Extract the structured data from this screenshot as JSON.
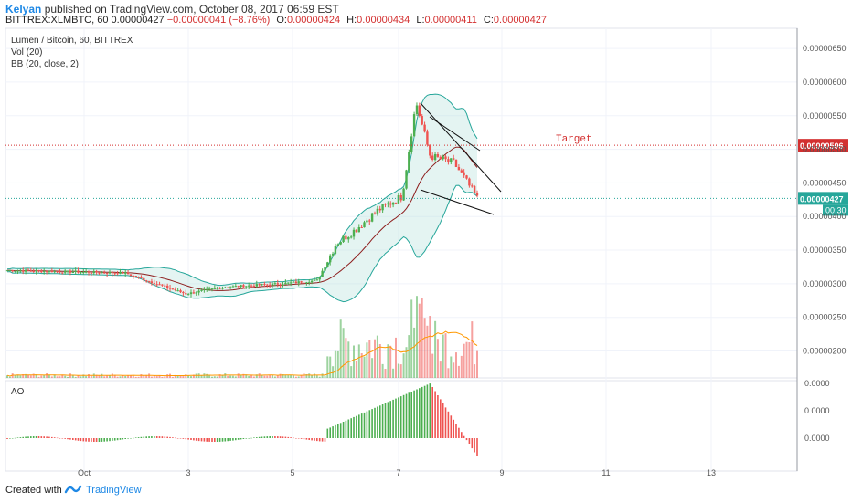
{
  "header": {
    "author": "Kelyan",
    "published": "published on TradingView.com, October 08, 2017 06:59 EST",
    "symbol_line": "BITTREX:XLMBTC, 60",
    "last": "0.00000427",
    "change": "−0.00000041 (−8.76%)",
    "o_label": "O:",
    "o_value": "0.00000424",
    "h_label": "H:",
    "h_value": "0.00000434",
    "l_label": "L:",
    "l_value": "0.00000411",
    "c_label": "C:",
    "c_value": "0.00000427"
  },
  "legend": {
    "title": "Lumen / Bitcoin, 60, BITTREX",
    "vol": "Vol (20)",
    "bb": "BB (20, close, 2)",
    "ao": "AO"
  },
  "footer": {
    "created_with": "Created with",
    "brand": "TradingView"
  },
  "colors": {
    "up": "#4caf50",
    "down": "#ef5350",
    "bb_band": "#26a69a",
    "bb_fill": "#b2dfdb",
    "bb_mid": "#8d1c1c",
    "target_line": "#d32f2f",
    "last_line": "#26a69a",
    "vol_ma": "#ff9800",
    "brand": "#1e88e5"
  },
  "chart_data": {
    "type": "candlestick",
    "price_axis": {
      "ticks": [
        "0.00000650",
        "0.00000600",
        "0.00000550",
        "0.00000500",
        "0.00000450",
        "0.00000400",
        "0.00000350",
        "0.00000300",
        "0.00000250",
        "0.00000200"
      ],
      "range": [
        1.6e-06,
        6.8e-06
      ]
    },
    "time_axis": {
      "ticks": [
        "Oct",
        "3",
        "5",
        "7",
        "9",
        "11",
        "13"
      ]
    },
    "price_path_keypoints": [
      {
        "t": 0,
        "p": 3.2
      },
      {
        "t": 0.12,
        "p": 3.18
      },
      {
        "t": 0.25,
        "p": 3.16
      },
      {
        "t": 0.38,
        "p": 2.85
      },
      {
        "t": 0.46,
        "p": 2.95
      },
      {
        "t": 0.58,
        "p": 3.0
      },
      {
        "t": 0.66,
        "p": 3.05
      },
      {
        "t": 0.7,
        "p": 3.6
      },
      {
        "t": 0.74,
        "p": 3.8
      },
      {
        "t": 0.79,
        "p": 4.1
      },
      {
        "t": 0.84,
        "p": 4.3
      },
      {
        "t": 0.87,
        "p": 5.7
      },
      {
        "t": 0.9,
        "p": 4.9
      },
      {
        "t": 0.95,
        "p": 4.8
      },
      {
        "t": 0.97,
        "p": 4.6
      },
      {
        "t": 1.0,
        "p": 4.27
      }
    ],
    "annotations": [
      {
        "type": "hline",
        "label": "Target",
        "value": 5.06e-06,
        "badge": "0.00000506",
        "color": "#d32f2f"
      },
      {
        "type": "hline",
        "label": "",
        "value": 4.27e-06,
        "badge": "0.00000427",
        "sub": "00:30",
        "color": "#26a69a"
      },
      {
        "type": "trendline",
        "note": "falling wedge upper",
        "from": {
          "x": "Oct 7 10:00",
          "y": 5.7e-06
        },
        "to": {
          "x": "Oct 8 20:00",
          "y": 4.4e-06
        }
      },
      {
        "type": "trendline",
        "note": "falling wedge lower",
        "from": {
          "x": "Oct 7 08:00",
          "y": 4.5e-06
        },
        "to": {
          "x": "Oct 8 20:00",
          "y": 4e-06
        }
      }
    ],
    "ao_axis": {
      "ticks": [
        "0.0000",
        "0.0000",
        "0.0000"
      ]
    }
  }
}
